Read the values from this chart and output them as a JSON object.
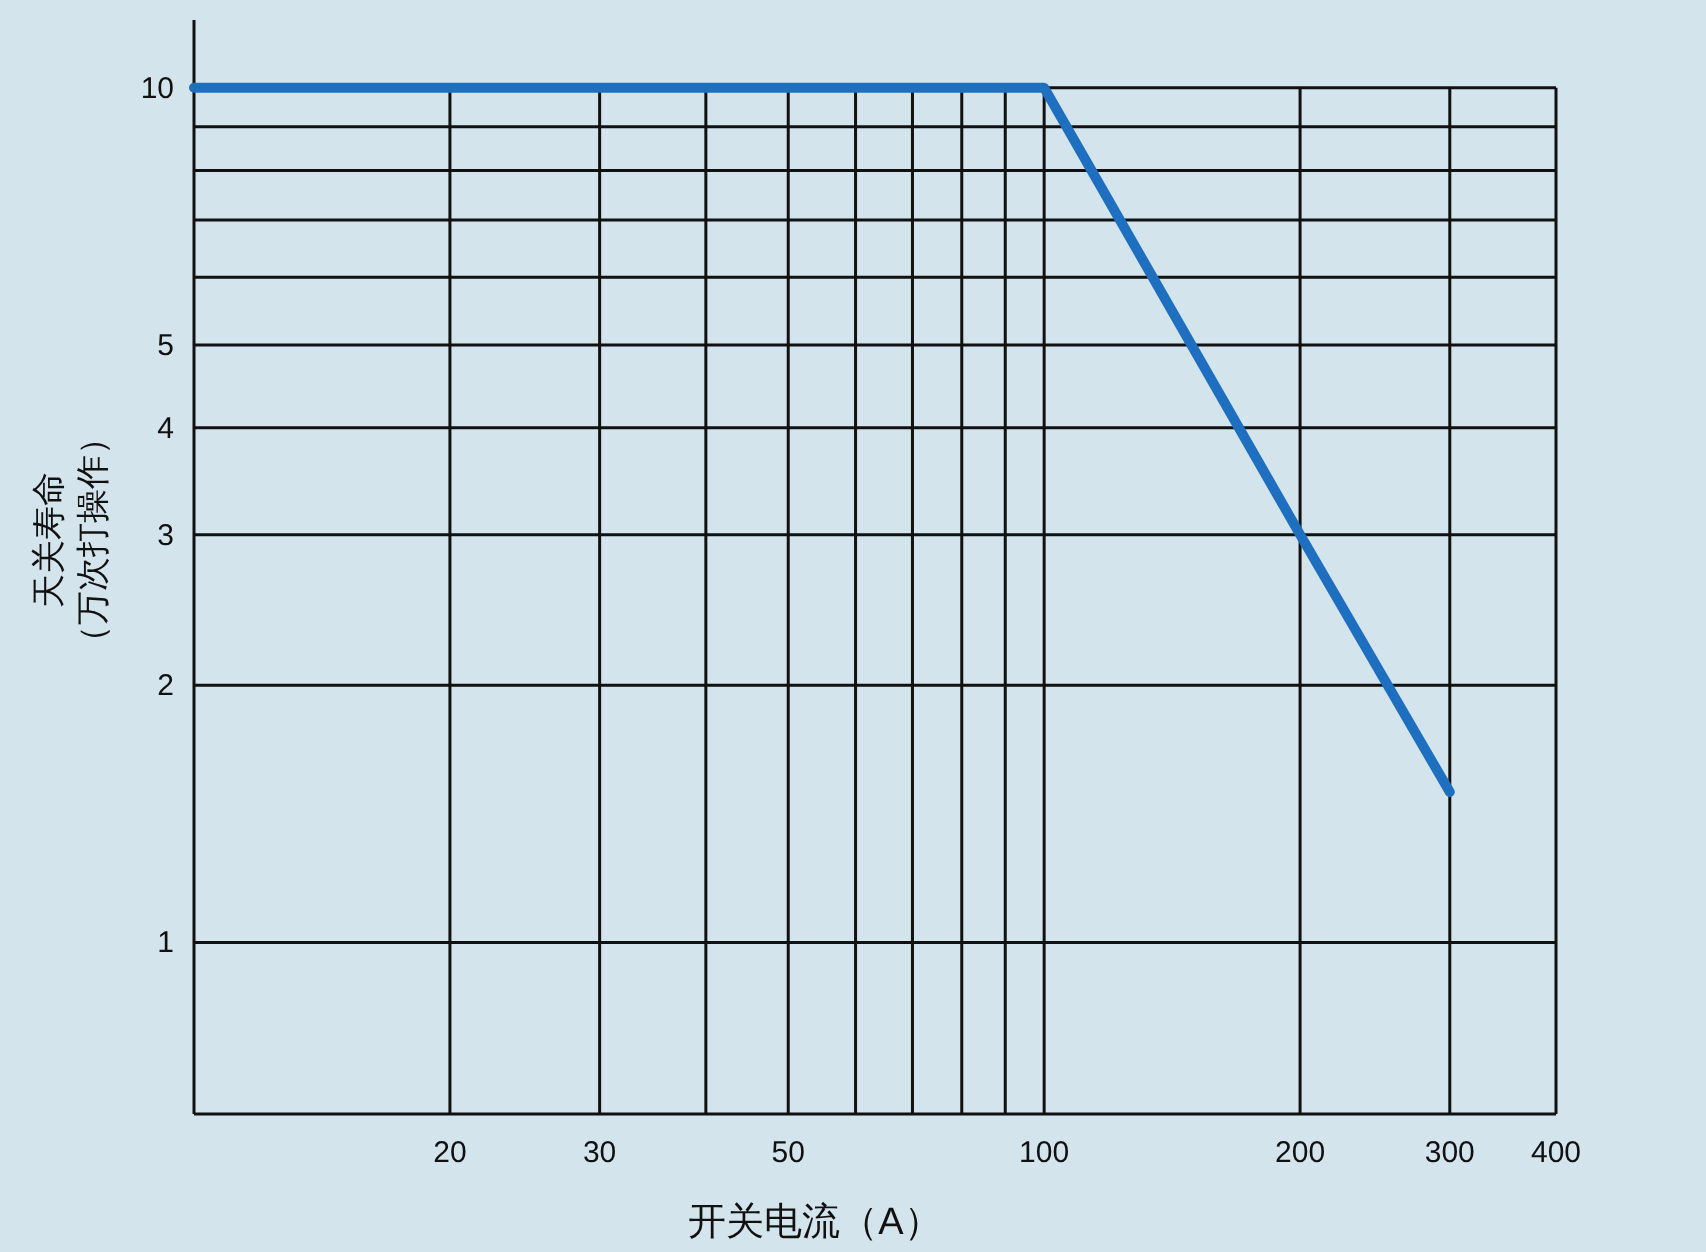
{
  "chart_data": {
    "type": "line",
    "xlabel": "开关电流（A）",
    "ylabel": "天关寿命（万次打操作）",
    "log": "xy",
    "grid": true,
    "xlim": [
      10,
      400
    ],
    "ylim": [
      0.63,
      12
    ],
    "xticks": [
      20,
      30,
      {
        "value": 40,
        "label": null
      },
      50,
      {
        "value": 60,
        "label": null
      },
      {
        "value": 70,
        "label": null
      },
      {
        "value": 80,
        "label": null
      },
      {
        "value": 90,
        "label": null
      },
      100,
      200,
      300,
      400
    ],
    "yticks": [
      1,
      2,
      3,
      4,
      5,
      {
        "value": 6,
        "label": null
      },
      {
        "value": 7,
        "label": null
      },
      {
        "value": 8,
        "label": null
      },
      {
        "value": 9,
        "label": null
      },
      10
    ],
    "series": [
      {
        "color": "#1f6fc0",
        "x": [
          10,
          100,
          200,
          300
        ],
        "values": [
          10,
          10,
          3,
          1.5
        ]
      }
    ]
  }
}
